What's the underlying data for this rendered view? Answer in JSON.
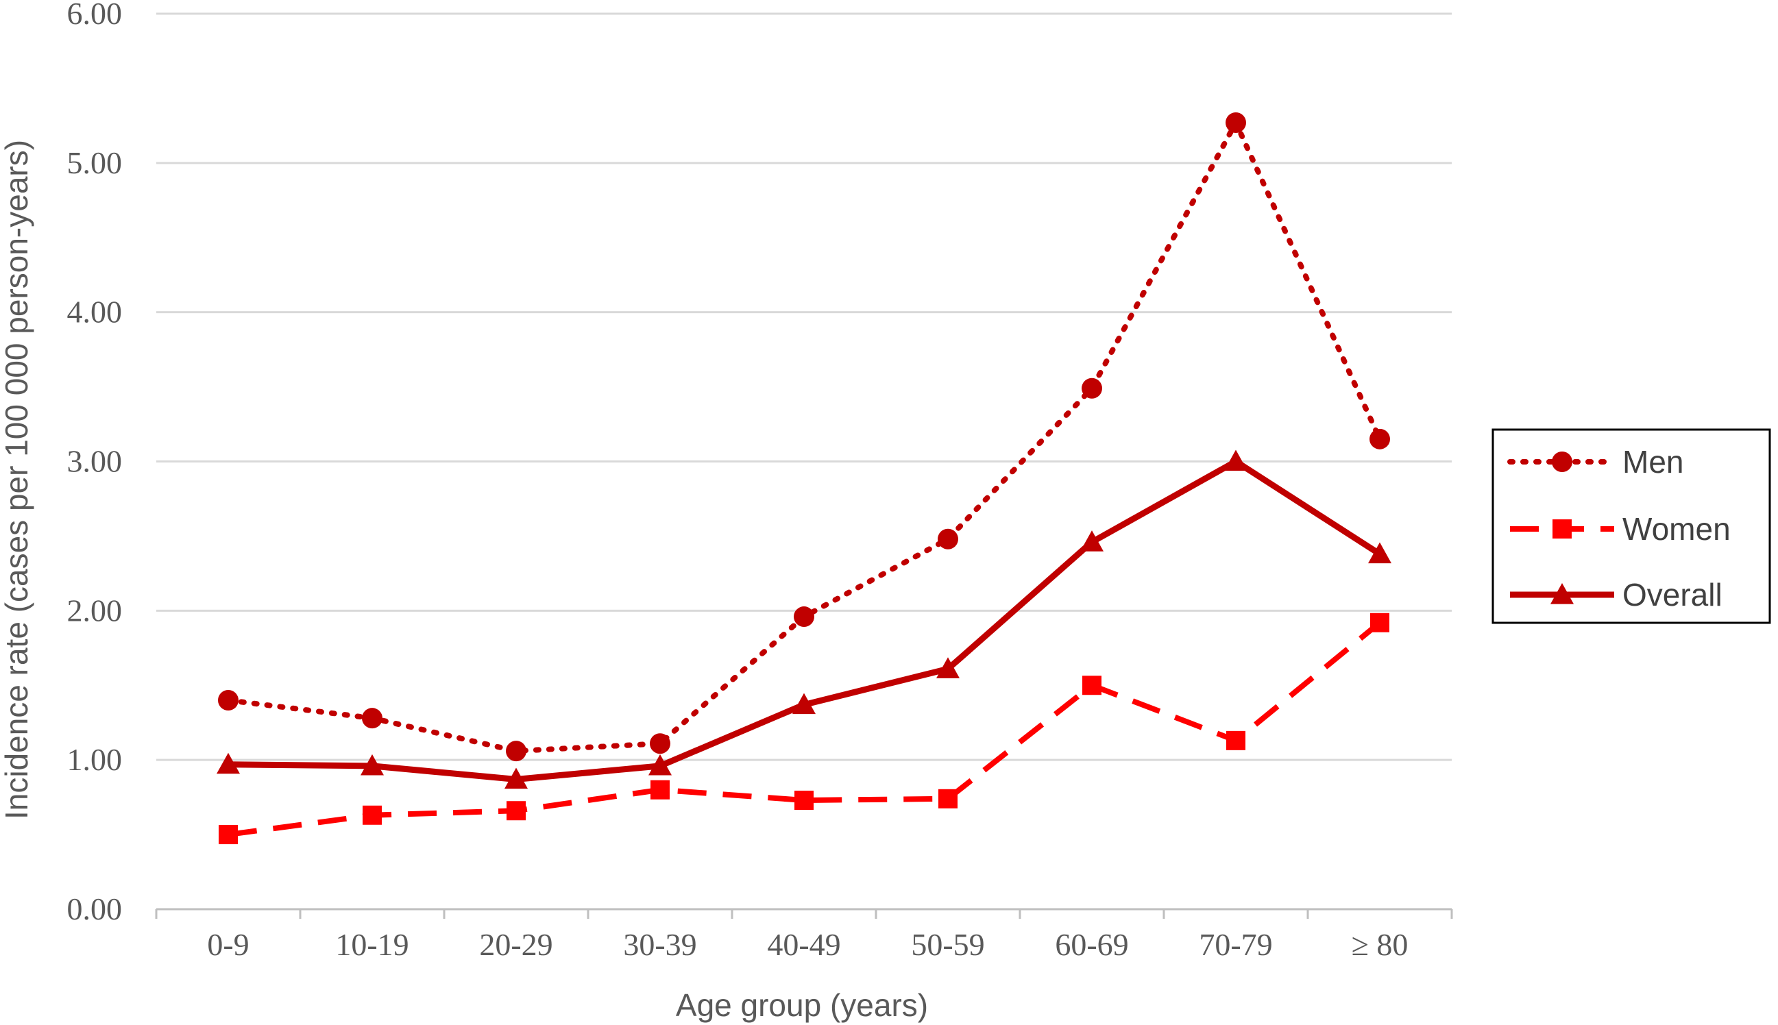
{
  "chart_data": {
    "type": "line",
    "title": "",
    "xlabel": "Age group (years)",
    "ylabel": "Incidence rate (cases per 100 000 person-years)",
    "categories": [
      "0-9",
      "10-19",
      "20-29",
      "30-39",
      "40-49",
      "50-59",
      "60-69",
      "70-79",
      "≥ 80"
    ],
    "ylim": [
      0,
      6
    ],
    "yticks": [
      0,
      1,
      2,
      3,
      4,
      5,
      6
    ],
    "ytick_labels": [
      "0.00",
      "1.00",
      "2.00",
      "3.00",
      "4.00",
      "5.00",
      "6.00"
    ],
    "grid": true,
    "legend_position": "right",
    "series": [
      {
        "name": "Men",
        "values": [
          1.4,
          1.28,
          1.06,
          1.11,
          1.96,
          2.48,
          3.49,
          5.27,
          3.15
        ],
        "color": "#C00000",
        "line_style": "dotted",
        "marker": "circle"
      },
      {
        "name": "Women",
        "values": [
          0.5,
          0.63,
          0.66,
          0.8,
          0.73,
          0.74,
          1.5,
          1.13,
          1.92
        ],
        "color": "#FF0000",
        "line_style": "dashed",
        "marker": "square"
      },
      {
        "name": "Overall",
        "values": [
          0.97,
          0.96,
          0.87,
          0.96,
          1.37,
          1.61,
          2.46,
          3.0,
          2.38
        ],
        "color": "#C00000",
        "line_style": "solid",
        "marker": "triangle"
      }
    ]
  }
}
